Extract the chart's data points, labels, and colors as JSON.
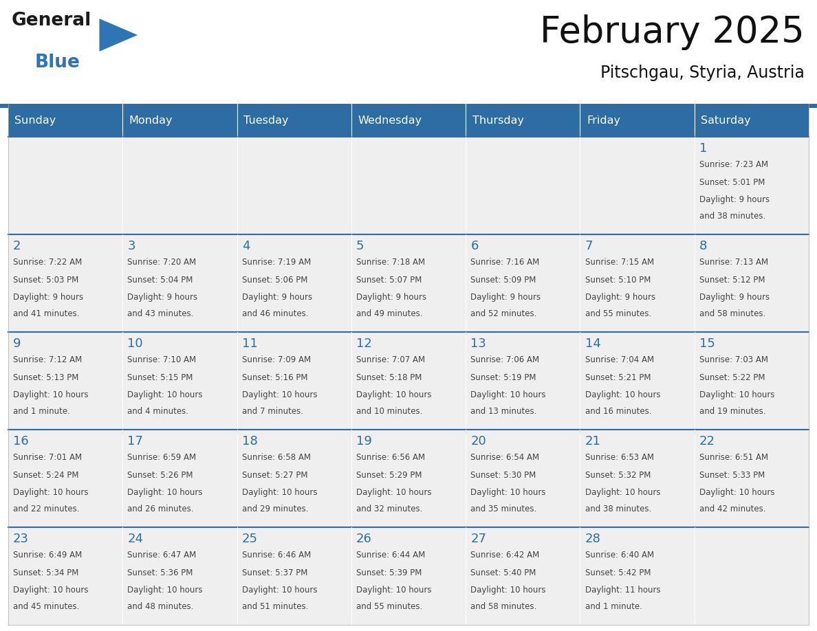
{
  "title": "February 2025",
  "subtitle": "Pitschgau, Styria, Austria",
  "header_bg": "#2E6DA4",
  "header_text": "#FFFFFF",
  "cell_bg": "#EFEFEF",
  "border_color": "#2E6DA4",
  "day_number_color": "#2E6DA4",
  "text_color": "#444444",
  "days_of_week": [
    "Sunday",
    "Monday",
    "Tuesday",
    "Wednesday",
    "Thursday",
    "Friday",
    "Saturday"
  ],
  "logo_general_color": "#1a1a1a",
  "logo_blue_color": "#2E75B6",
  "calendar_data": [
    [
      null,
      null,
      null,
      null,
      null,
      null,
      {
        "day": 1,
        "sunrise": "7:23 AM",
        "sunset": "5:01 PM",
        "daylight_line1": "9 hours",
        "daylight_line2": "and 38 minutes."
      }
    ],
    [
      {
        "day": 2,
        "sunrise": "7:22 AM",
        "sunset": "5:03 PM",
        "daylight_line1": "9 hours",
        "daylight_line2": "and 41 minutes."
      },
      {
        "day": 3,
        "sunrise": "7:20 AM",
        "sunset": "5:04 PM",
        "daylight_line1": "9 hours",
        "daylight_line2": "and 43 minutes."
      },
      {
        "day": 4,
        "sunrise": "7:19 AM",
        "sunset": "5:06 PM",
        "daylight_line1": "9 hours",
        "daylight_line2": "and 46 minutes."
      },
      {
        "day": 5,
        "sunrise": "7:18 AM",
        "sunset": "5:07 PM",
        "daylight_line1": "9 hours",
        "daylight_line2": "and 49 minutes."
      },
      {
        "day": 6,
        "sunrise": "7:16 AM",
        "sunset": "5:09 PM",
        "daylight_line1": "9 hours",
        "daylight_line2": "and 52 minutes."
      },
      {
        "day": 7,
        "sunrise": "7:15 AM",
        "sunset": "5:10 PM",
        "daylight_line1": "9 hours",
        "daylight_line2": "and 55 minutes."
      },
      {
        "day": 8,
        "sunrise": "7:13 AM",
        "sunset": "5:12 PM",
        "daylight_line1": "9 hours",
        "daylight_line2": "and 58 minutes."
      }
    ],
    [
      {
        "day": 9,
        "sunrise": "7:12 AM",
        "sunset": "5:13 PM",
        "daylight_line1": "10 hours",
        "daylight_line2": "and 1 minute."
      },
      {
        "day": 10,
        "sunrise": "7:10 AM",
        "sunset": "5:15 PM",
        "daylight_line1": "10 hours",
        "daylight_line2": "and 4 minutes."
      },
      {
        "day": 11,
        "sunrise": "7:09 AM",
        "sunset": "5:16 PM",
        "daylight_line1": "10 hours",
        "daylight_line2": "and 7 minutes."
      },
      {
        "day": 12,
        "sunrise": "7:07 AM",
        "sunset": "5:18 PM",
        "daylight_line1": "10 hours",
        "daylight_line2": "and 10 minutes."
      },
      {
        "day": 13,
        "sunrise": "7:06 AM",
        "sunset": "5:19 PM",
        "daylight_line1": "10 hours",
        "daylight_line2": "and 13 minutes."
      },
      {
        "day": 14,
        "sunrise": "7:04 AM",
        "sunset": "5:21 PM",
        "daylight_line1": "10 hours",
        "daylight_line2": "and 16 minutes."
      },
      {
        "day": 15,
        "sunrise": "7:03 AM",
        "sunset": "5:22 PM",
        "daylight_line1": "10 hours",
        "daylight_line2": "and 19 minutes."
      }
    ],
    [
      {
        "day": 16,
        "sunrise": "7:01 AM",
        "sunset": "5:24 PM",
        "daylight_line1": "10 hours",
        "daylight_line2": "and 22 minutes."
      },
      {
        "day": 17,
        "sunrise": "6:59 AM",
        "sunset": "5:26 PM",
        "daylight_line1": "10 hours",
        "daylight_line2": "and 26 minutes."
      },
      {
        "day": 18,
        "sunrise": "6:58 AM",
        "sunset": "5:27 PM",
        "daylight_line1": "10 hours",
        "daylight_line2": "and 29 minutes."
      },
      {
        "day": 19,
        "sunrise": "6:56 AM",
        "sunset": "5:29 PM",
        "daylight_line1": "10 hours",
        "daylight_line2": "and 32 minutes."
      },
      {
        "day": 20,
        "sunrise": "6:54 AM",
        "sunset": "5:30 PM",
        "daylight_line1": "10 hours",
        "daylight_line2": "and 35 minutes."
      },
      {
        "day": 21,
        "sunrise": "6:53 AM",
        "sunset": "5:32 PM",
        "daylight_line1": "10 hours",
        "daylight_line2": "and 38 minutes."
      },
      {
        "day": 22,
        "sunrise": "6:51 AM",
        "sunset": "5:33 PM",
        "daylight_line1": "10 hours",
        "daylight_line2": "and 42 minutes."
      }
    ],
    [
      {
        "day": 23,
        "sunrise": "6:49 AM",
        "sunset": "5:34 PM",
        "daylight_line1": "10 hours",
        "daylight_line2": "and 45 minutes."
      },
      {
        "day": 24,
        "sunrise": "6:47 AM",
        "sunset": "5:36 PM",
        "daylight_line1": "10 hours",
        "daylight_line2": "and 48 minutes."
      },
      {
        "day": 25,
        "sunrise": "6:46 AM",
        "sunset": "5:37 PM",
        "daylight_line1": "10 hours",
        "daylight_line2": "and 51 minutes."
      },
      {
        "day": 26,
        "sunrise": "6:44 AM",
        "sunset": "5:39 PM",
        "daylight_line1": "10 hours",
        "daylight_line2": "and 55 minutes."
      },
      {
        "day": 27,
        "sunrise": "6:42 AM",
        "sunset": "5:40 PM",
        "daylight_line1": "10 hours",
        "daylight_line2": "and 58 minutes."
      },
      {
        "day": 28,
        "sunrise": "6:40 AM",
        "sunset": "5:42 PM",
        "daylight_line1": "11 hours",
        "daylight_line2": "and 1 minute."
      },
      null
    ]
  ]
}
